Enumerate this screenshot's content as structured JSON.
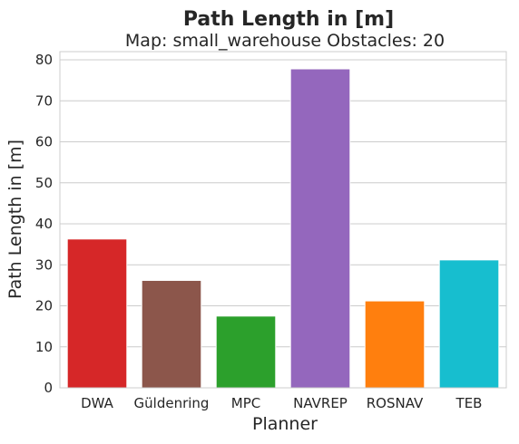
{
  "chart_data": {
    "type": "bar",
    "title": "Path Length in [m]",
    "subtitle": "Map: small_warehouse Obstacles: 20",
    "xlabel": "Planner",
    "ylabel": "Path Length in [m]",
    "categories": [
      "DWA",
      "Güldenring",
      "MPC",
      "NAVREP",
      "ROSNAV",
      "TEB"
    ],
    "values": [
      36.3,
      26.2,
      17.5,
      77.8,
      21.2,
      31.2
    ],
    "colors": [
      "#d62728",
      "#8c564b",
      "#2ca02c",
      "#9467bd",
      "#ff7f0e",
      "#17becf"
    ],
    "ylim": [
      0,
      82
    ],
    "yticks": [
      0,
      10,
      20,
      30,
      40,
      50,
      60,
      70,
      80
    ],
    "grid": "horizontal",
    "legend": "none"
  }
}
